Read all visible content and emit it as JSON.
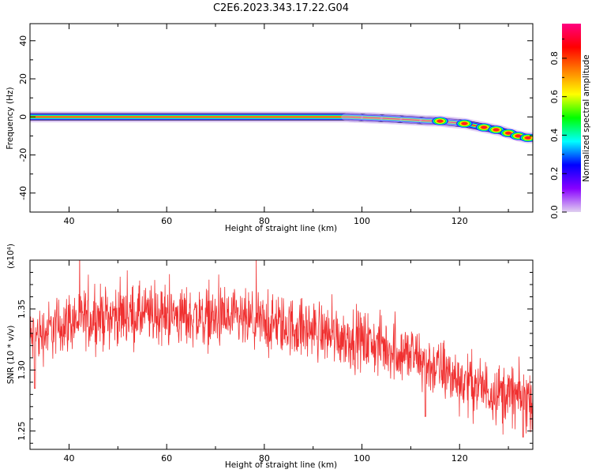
{
  "figure": {
    "title": "C2E6.2023.343.17.22.G04"
  },
  "chart_data": [
    {
      "type": "heatmap",
      "xlabel": "Height of straight line (km)",
      "ylabel": "Frequency (Hz)",
      "xlim": [
        32,
        135
      ],
      "ylim": [
        -50,
        49
      ],
      "xticks": [
        "40",
        "60",
        "80",
        "100",
        "120"
      ],
      "xtick_values": [
        40,
        60,
        80,
        100,
        120
      ],
      "yticks": [
        "-40",
        "-20",
        "0",
        "20",
        "40"
      ],
      "ytick_values": [
        -40,
        -20,
        0,
        20,
        40
      ],
      "ridge": {
        "height_km": [
          32,
          90,
          97,
          100,
          105,
          110,
          113,
          116,
          118,
          121,
          123,
          126,
          128,
          130,
          132,
          134
        ],
        "frequency_hz": [
          0,
          0,
          0,
          -0.3,
          -0.8,
          -1.5,
          -2,
          -2.2,
          -2.8,
          -3.5,
          -4.5,
          -6,
          -7,
          -8.5,
          -10,
          -11
        ]
      },
      "blobs_km": [
        116,
        121,
        125,
        127.5,
        130,
        132,
        134
      ],
      "colorbar": {
        "label": "Normalized spectral amplitude",
        "ticks": [
          "0.0",
          "0.2",
          "0.4",
          "0.6",
          "0.8"
        ],
        "tick_values": [
          0,
          0.2,
          0.4,
          0.6,
          0.8
        ],
        "colormap": [
          "#e0d0f0",
          "#8800ff",
          "#0000ff",
          "#00ffff",
          "#00ff00",
          "#ffff00",
          "#ff8000",
          "#ff0000",
          "#ff0080"
        ]
      }
    },
    {
      "type": "line",
      "xlabel": "Height of straight line (km)",
      "ylabel": "SNR (10 * v/v)",
      "scale_note": "(x10⁴)",
      "xlim": [
        32,
        135
      ],
      "ylim": [
        1.235,
        1.39
      ],
      "xticks": [
        "40",
        "60",
        "80",
        "100",
        "120"
      ],
      "xtick_values": [
        40,
        60,
        80,
        100,
        120
      ],
      "yticks": [
        "1.25",
        "1.30",
        "1.35"
      ],
      "ytick_values": [
        1.25,
        1.3,
        1.35
      ],
      "color": "#f03030",
      "trend": {
        "x": [
          32,
          40,
          50,
          60,
          70,
          80,
          90,
          100,
          105,
          110,
          115,
          120,
          125,
          130,
          135
        ],
        "y": [
          1.325,
          1.34,
          1.345,
          1.345,
          1.342,
          1.338,
          1.333,
          1.324,
          1.318,
          1.312,
          1.302,
          1.292,
          1.285,
          1.28,
          1.275
        ]
      },
      "noise_amplitude": 0.012,
      "dips": [
        {
          "x": 113,
          "y": 1.262
        },
        {
          "x": 33,
          "y": 1.285
        },
        {
          "x": 133,
          "y": 1.245
        }
      ]
    }
  ]
}
